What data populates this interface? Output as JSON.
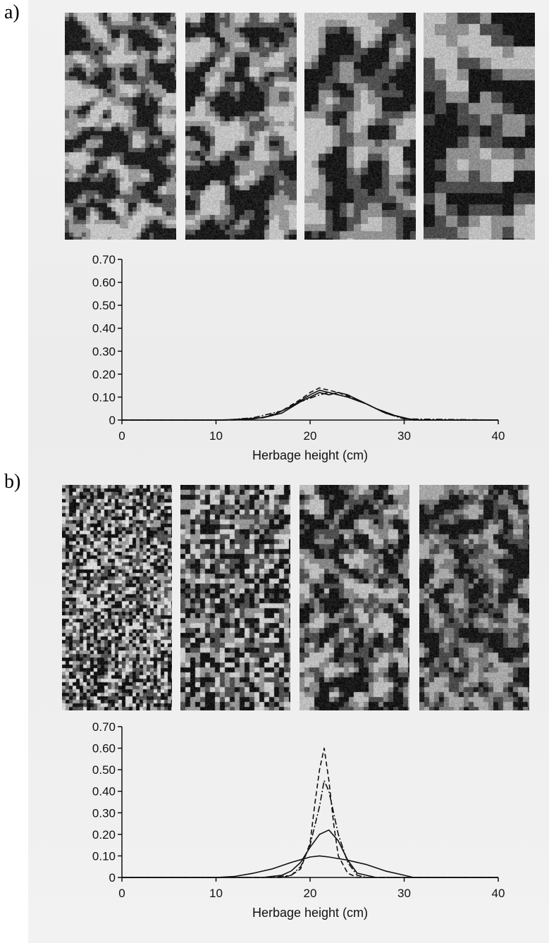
{
  "panels": [
    {
      "letter": "a)",
      "tiles": [
        {
          "seed": 11,
          "cell": 6,
          "levels": [
            "#1e1e1e",
            "#5a5a5a",
            "#9a9a9a",
            "#c4c4c4"
          ],
          "smooth": 2
        },
        {
          "seed": 23,
          "cell": 7,
          "levels": [
            "#1c1c1c",
            "#555555",
            "#969696",
            "#c2c2c2"
          ],
          "smooth": 2
        },
        {
          "seed": 37,
          "cell": 10,
          "levels": [
            "#1a1a1a",
            "#505050",
            "#929292",
            "#c0c0c0"
          ],
          "smooth": 2
        },
        {
          "seed": 51,
          "cell": 16,
          "levels": [
            "#181818",
            "#4c4c4c",
            "#8e8e8e",
            "#bdbdbd"
          ],
          "smooth": 1
        }
      ]
    },
    {
      "letter": "b)",
      "tiles": [
        {
          "seed": 61,
          "cell": 5,
          "levels": [
            "#141414",
            "#545454",
            "#a0a0a0",
            "#d8d8d8"
          ],
          "smooth": 0
        },
        {
          "seed": 73,
          "cell": 7,
          "levels": [
            "#161616",
            "#505050",
            "#969696",
            "#cccccc"
          ],
          "smooth": 0
        },
        {
          "seed": 89,
          "cell": 7,
          "levels": [
            "#181818",
            "#4e4e4e",
            "#888888",
            "#bdbdbd"
          ],
          "smooth": 1
        },
        {
          "seed": 97,
          "cell": 7,
          "levels": [
            "#1a1a1a",
            "#4a4a4a",
            "#7c7c7c",
            "#a8a8a8"
          ],
          "smooth": 1
        }
      ]
    }
  ],
  "chart_data": [
    {
      "type": "line",
      "xlabel": "Herbage height (cm)",
      "ylabel": "",
      "xlim": [
        0,
        40
      ],
      "ylim": [
        0,
        0.7
      ],
      "xticks": [
        "0",
        "10",
        "20",
        "30",
        "40"
      ],
      "yticks": [
        "0",
        "0.10",
        "0.20",
        "0.30",
        "0.40",
        "0.50",
        "0.60",
        "0.70"
      ],
      "series": [
        {
          "style": "solid",
          "x": [
            0,
            10,
            14,
            16,
            18,
            20,
            21,
            22,
            23,
            24,
            26,
            28,
            30,
            31,
            32,
            40
          ],
          "y": [
            0,
            0,
            0.005,
            0.02,
            0.06,
            0.11,
            0.13,
            0.12,
            0.11,
            0.1,
            0.07,
            0.03,
            0.008,
            0.002,
            0,
            0
          ]
        },
        {
          "style": "solid",
          "x": [
            0,
            11,
            15,
            17,
            19,
            21,
            22,
            23,
            24,
            25,
            27,
            29,
            31,
            40
          ],
          "y": [
            0,
            0,
            0.01,
            0.03,
            0.08,
            0.12,
            0.11,
            0.12,
            0.11,
            0.09,
            0.05,
            0.02,
            0,
            0
          ]
        },
        {
          "style": "dashed",
          "x": [
            0,
            12,
            15,
            17,
            19,
            20,
            21,
            22,
            23,
            25,
            27,
            29,
            31,
            40
          ],
          "y": [
            0,
            0,
            0.01,
            0.04,
            0.09,
            0.12,
            0.14,
            0.13,
            0.12,
            0.09,
            0.05,
            0.02,
            0,
            0
          ]
        },
        {
          "style": "dashdot",
          "x": [
            0,
            11,
            14,
            17,
            19,
            21,
            22,
            23,
            24,
            26,
            28,
            30,
            40
          ],
          "y": [
            0,
            0,
            0.01,
            0.04,
            0.08,
            0.11,
            0.12,
            0.11,
            0.1,
            0.07,
            0.03,
            0.005,
            0
          ]
        }
      ]
    },
    {
      "type": "line",
      "xlabel": "Herbage height (cm)",
      "ylabel": "",
      "xlim": [
        0,
        40
      ],
      "ylim": [
        0,
        0.7
      ],
      "xticks": [
        "0",
        "10",
        "20",
        "30",
        "40"
      ],
      "yticks": [
        "0",
        "0.10",
        "0.20",
        "0.30",
        "0.40",
        "0.50",
        "0.60",
        "0.70"
      ],
      "series": [
        {
          "style": "solid",
          "x": [
            0,
            10,
            12,
            14,
            16,
            18,
            20,
            21,
            22,
            24,
            26,
            28,
            30,
            31,
            40
          ],
          "y": [
            0,
            0,
            0.005,
            0.02,
            0.04,
            0.07,
            0.095,
            0.1,
            0.095,
            0.08,
            0.06,
            0.03,
            0.01,
            0,
            0
          ]
        },
        {
          "style": "solid",
          "x": [
            0,
            15,
            17,
            18,
            19,
            20,
            21,
            22,
            23,
            24,
            25,
            27,
            40
          ],
          "y": [
            0,
            0,
            0.01,
            0.03,
            0.07,
            0.14,
            0.2,
            0.22,
            0.17,
            0.08,
            0.02,
            0,
            0
          ]
        },
        {
          "style": "dashed",
          "x": [
            0,
            17,
            18,
            19,
            20,
            20.5,
            21,
            21.5,
            22,
            22.5,
            23,
            24,
            25,
            40
          ],
          "y": [
            0,
            0,
            0.01,
            0.04,
            0.16,
            0.34,
            0.5,
            0.6,
            0.45,
            0.25,
            0.1,
            0.02,
            0,
            0
          ]
        },
        {
          "style": "dashdot",
          "x": [
            0,
            16,
            18,
            19,
            20,
            21,
            21.5,
            22,
            22.5,
            23,
            24,
            25,
            26,
            40
          ],
          "y": [
            0,
            0,
            0.01,
            0.05,
            0.15,
            0.33,
            0.45,
            0.4,
            0.3,
            0.2,
            0.07,
            0.01,
            0,
            0
          ]
        }
      ]
    }
  ]
}
